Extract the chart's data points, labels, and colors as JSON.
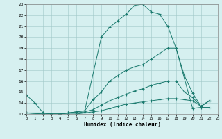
{
  "xlabel": "Humidex (Indice chaleur)",
  "bg_color": "#d6f0f0",
  "line_color": "#1a7a6e",
  "xlim": [
    0,
    23
  ],
  "ylim": [
    13,
    23
  ],
  "xticks": [
    0,
    1,
    2,
    3,
    4,
    5,
    6,
    7,
    8,
    9,
    10,
    11,
    12,
    13,
    14,
    15,
    16,
    17,
    18,
    19,
    20,
    21,
    22,
    23
  ],
  "yticks": [
    13,
    14,
    15,
    16,
    17,
    18,
    19,
    20,
    21,
    22,
    23
  ],
  "lines": [
    {
      "x": [
        0,
        1,
        2,
        3,
        4,
        5,
        6,
        7,
        9,
        10,
        11,
        12,
        13,
        14,
        15,
        16,
        17,
        18,
        20,
        21,
        22
      ],
      "y": [
        14.7,
        14.0,
        13.1,
        13.0,
        13.0,
        13.1,
        13.2,
        13.3,
        20.0,
        20.9,
        21.5,
        22.1,
        22.9,
        23.0,
        22.3,
        22.1,
        21.0,
        19.0,
        13.5,
        13.6,
        13.6
      ]
    },
    {
      "x": [
        0,
        2,
        3,
        4,
        5,
        6,
        7,
        8,
        9,
        10,
        11,
        12,
        13,
        14,
        15,
        16,
        17,
        18,
        19,
        20,
        21,
        22
      ],
      "y": [
        13.1,
        13.1,
        13.0,
        13.0,
        13.1,
        13.2,
        13.3,
        14.3,
        15.0,
        16.0,
        16.5,
        17.0,
        17.3,
        17.5,
        18.0,
        18.5,
        19.0,
        19.0,
        16.5,
        14.9,
        13.7,
        14.2
      ]
    },
    {
      "x": [
        0,
        2,
        3,
        4,
        5,
        6,
        7,
        8,
        9,
        10,
        11,
        12,
        13,
        14,
        15,
        16,
        17,
        18,
        19,
        20,
        21,
        22
      ],
      "y": [
        13.1,
        13.0,
        13.0,
        13.0,
        13.1,
        13.1,
        13.2,
        13.4,
        13.8,
        14.2,
        14.5,
        14.8,
        15.1,
        15.3,
        15.6,
        15.8,
        16.0,
        16.0,
        15.0,
        14.5,
        13.7,
        14.2
      ]
    },
    {
      "x": [
        0,
        2,
        3,
        4,
        5,
        6,
        7,
        8,
        9,
        10,
        11,
        12,
        13,
        14,
        15,
        16,
        17,
        18,
        19,
        20,
        21,
        22
      ],
      "y": [
        13.1,
        13.0,
        13.0,
        13.0,
        13.0,
        13.0,
        13.1,
        13.2,
        13.3,
        13.5,
        13.7,
        13.9,
        14.0,
        14.1,
        14.2,
        14.3,
        14.4,
        14.4,
        14.3,
        14.2,
        13.7,
        14.2
      ]
    }
  ]
}
